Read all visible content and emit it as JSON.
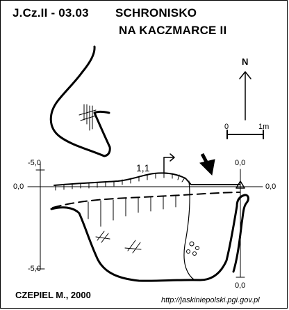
{
  "map": {
    "code": "J.Cz.II - 03.03",
    "name_line1": "SCHRONISKO",
    "name_line2": "NA KACZMARCE II",
    "north_label": "N",
    "scale_left": "0",
    "scale_right": "1m",
    "station_label": "1,1",
    "author": "CZEPIEL M., 2000",
    "source_url": "http://jaskiniepolski.pgi.gov.pl"
  },
  "section_axes": {
    "left_top": "-5,0",
    "left_zero": "0,0",
    "left_bottom": "-5,0",
    "right_top": "0,0",
    "right_zero": "0,0",
    "right_bottom": "0,0"
  },
  "colors": {
    "ink": "#000000",
    "background": "#ffffff"
  }
}
